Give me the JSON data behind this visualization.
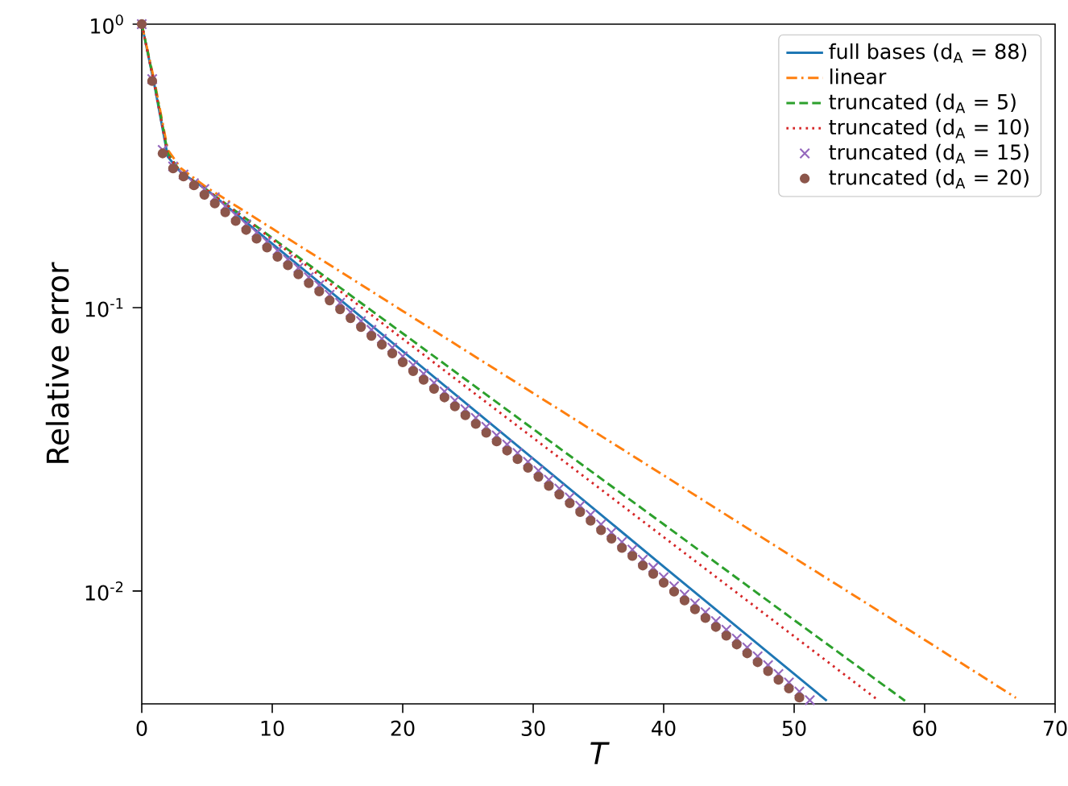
{
  "chart_data": {
    "type": "line",
    "xlabel": "T",
    "ylabel": "Relative error",
    "log": "y",
    "xlim": [
      0,
      70
    ],
    "ylim": [
      0.004,
      1
    ],
    "xticks": [
      0,
      10,
      20,
      30,
      40,
      50,
      60,
      70
    ],
    "yticks": [
      {
        "value": 1,
        "label": "10$^{0}$"
      },
      {
        "value": 0.1,
        "label": "10$^{-1}$"
      },
      {
        "value": 0.01,
        "label": "10$^{-2}$"
      }
    ],
    "grid": false,
    "legend": "top right",
    "series": [
      {
        "name": "full bases (d$_{A}$ = 88)",
        "color": "#1f77b4",
        "line_style": "solid",
        "x": [
          0,
          1,
          2,
          3,
          5,
          10,
          20,
          30,
          40,
          52.5
        ],
        "values": [
          1,
          0.6,
          0.34,
          0.3,
          0.26,
          0.168,
          0.0702,
          0.0293,
          0.0122,
          0.0041
        ]
      },
      {
        "name": "linear",
        "color": "#ff7f0e",
        "line_style": "dashdot",
        "x": [
          0,
          1,
          2,
          3,
          5,
          10,
          20,
          30,
          40,
          50,
          60,
          67
        ],
        "values": [
          1,
          0.62,
          0.36,
          0.31,
          0.265,
          0.19,
          0.0973,
          0.0499,
          0.0256,
          0.0131,
          0.00673,
          0.0042
        ]
      },
      {
        "name": "truncated (d$_{A}$ = 5)",
        "color": "#2ca02c",
        "line_style": "dashed",
        "x": [
          0,
          1,
          2,
          3,
          5,
          10,
          20,
          30,
          40,
          50,
          58.5
        ],
        "values": [
          1,
          0.61,
          0.35,
          0.3,
          0.26,
          0.176,
          0.0811,
          0.0373,
          0.0172,
          0.0079,
          0.0041
        ]
      },
      {
        "name": "truncated (d$_{A}$ = 10)",
        "color": "#d62728",
        "line_style": "dotted",
        "x": [
          0,
          1,
          2,
          3,
          5,
          10,
          20,
          30,
          40,
          50,
          56.5
        ],
        "values": [
          1,
          0.6,
          0.345,
          0.3,
          0.26,
          0.174,
          0.0776,
          0.0347,
          0.0155,
          0.00692,
          0.0041
        ]
      },
      {
        "name": "truncated (d$_{A}$ = 15)",
        "color": "#9467bd",
        "type": "scatter",
        "marker": "cross",
        "x": [
          0,
          0.8,
          1.6,
          2.4,
          3.2,
          4.0,
          4.8,
          5.6,
          6.4,
          7.2,
          8.0,
          8.8,
          9.6,
          10.4,
          11.2,
          12.0,
          12.8,
          13.6,
          14.4,
          15.2,
          16.0,
          16.8,
          17.6,
          18.4,
          19.2,
          20.0,
          20.8,
          21.6,
          22.4,
          23.2,
          24.0,
          24.8,
          25.6,
          26.4,
          27.2,
          28.0,
          28.8,
          29.6,
          30.4,
          31.2,
          32.0,
          32.8,
          33.6,
          34.4,
          35.2,
          36.0,
          36.8,
          37.6,
          38.4,
          39.2,
          40.0,
          40.8,
          41.6,
          42.4,
          43.2,
          44.0,
          44.8,
          45.6,
          46.4,
          47.2,
          48.0,
          48.8,
          49.6,
          50.4,
          51.2
        ],
        "values": [
          1,
          0.64,
          0.36,
          0.315,
          0.295,
          0.275,
          0.262,
          0.245,
          0.228,
          0.212,
          0.197,
          0.184,
          0.171,
          0.159,
          0.148,
          0.138,
          0.128,
          0.12,
          0.111,
          0.104,
          0.0964,
          0.0897,
          0.0835,
          0.0777,
          0.0723,
          0.0673,
          0.0627,
          0.0584,
          0.0543,
          0.0506,
          0.047,
          0.0438,
          0.0408,
          0.038,
          0.0354,
          0.0329,
          0.0307,
          0.0286,
          0.0266,
          0.0247,
          0.023,
          0.0214,
          0.02,
          0.0186,
          0.0172,
          0.0161,
          0.0149,
          0.014,
          0.0129,
          0.0121,
          0.0112,
          0.0104,
          0.00972,
          0.00905,
          0.00843,
          0.00784,
          0.00731,
          0.0068,
          0.00633,
          0.00589,
          0.00548,
          0.0051,
          0.00476,
          0.00442,
          0.00412
        ]
      },
      {
        "name": "truncated (d$_{A}$ = 20)",
        "color": "#8c564b",
        "type": "scatter",
        "marker": "circle",
        "x": [
          0,
          0.8,
          1.6,
          2.4,
          3.2,
          4.0,
          4.8,
          5.6,
          6.4,
          7.2,
          8.0,
          8.8,
          9.6,
          10.4,
          11.2,
          12.0,
          12.8,
          13.6,
          14.4,
          15.2,
          16.0,
          16.8,
          17.6,
          18.4,
          19.2,
          20.0,
          20.8,
          21.6,
          22.4,
          23.2,
          24.0,
          24.8,
          25.6,
          26.4,
          27.2,
          28.0,
          28.8,
          29.6,
          30.4,
          31.2,
          32.0,
          32.8,
          33.6,
          34.4,
          35.2,
          36.0,
          36.8,
          37.6,
          38.4,
          39.2,
          40.0,
          40.8,
          41.6,
          42.4,
          43.2,
          44.0,
          44.8,
          45.6,
          46.4,
          47.2,
          48.0,
          48.8,
          49.6,
          50.4
        ],
        "values": [
          1,
          0.63,
          0.35,
          0.31,
          0.29,
          0.27,
          0.25,
          0.233,
          0.217,
          0.202,
          0.188,
          0.175,
          0.163,
          0.151,
          0.141,
          0.131,
          0.122,
          0.114,
          0.106,
          0.0986,
          0.0918,
          0.0854,
          0.0795,
          0.074,
          0.0689,
          0.0641,
          0.0597,
          0.0556,
          0.0517,
          0.0482,
          0.0448,
          0.0417,
          0.0389,
          0.0362,
          0.0337,
          0.0313,
          0.0292,
          0.0272,
          0.0253,
          0.0235,
          0.0219,
          0.0204,
          0.019,
          0.0177,
          0.0164,
          0.0153,
          0.0142,
          0.0133,
          0.0123,
          0.0115,
          0.0107,
          0.00995,
          0.00926,
          0.00862,
          0.00803,
          0.00747,
          0.00696,
          0.00648,
          0.00603,
          0.00561,
          0.00522,
          0.00486,
          0.00453,
          0.00421
        ]
      }
    ]
  }
}
